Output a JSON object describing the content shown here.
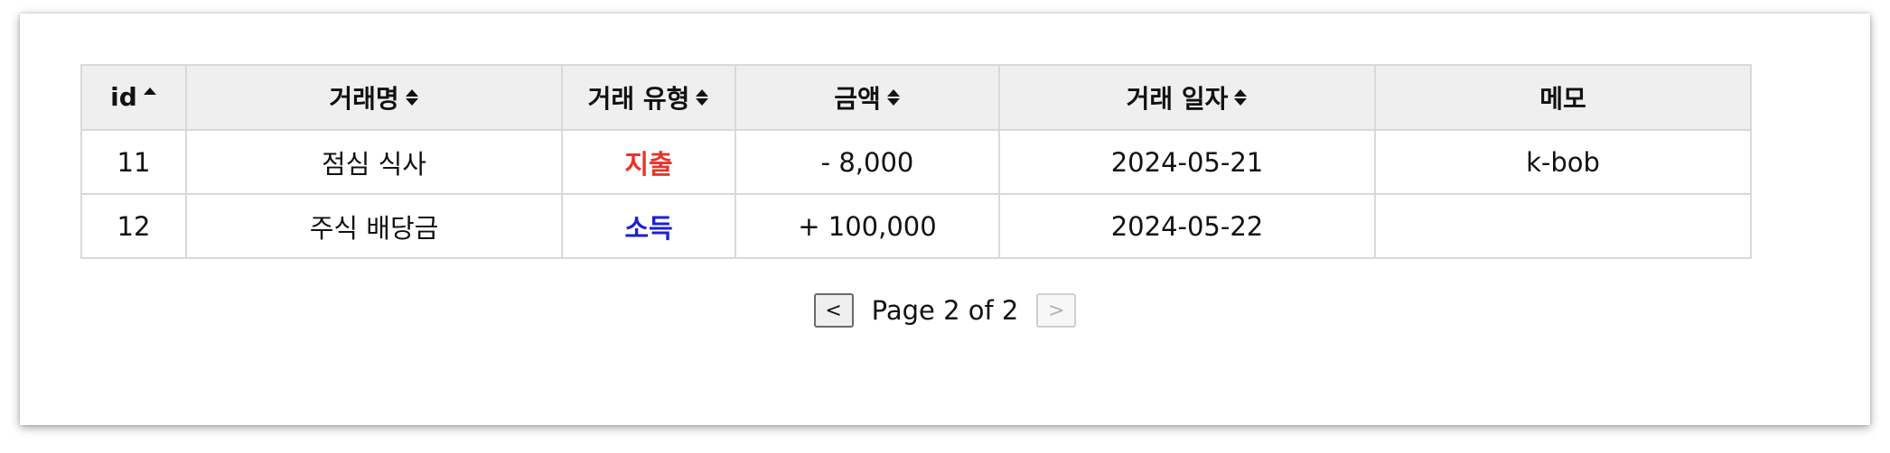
{
  "table": {
    "columns": [
      {
        "label": "id",
        "sort": "asc"
      },
      {
        "label": "거래명",
        "sort": "both"
      },
      {
        "label": "거래 유형",
        "sort": "both"
      },
      {
        "label": "금액",
        "sort": "both"
      },
      {
        "label": "거래 일자",
        "sort": "both"
      },
      {
        "label": "메모",
        "sort": "none"
      }
    ],
    "rows": [
      {
        "id": "11",
        "name": "점심 식사",
        "type": "지출",
        "type_kind": "expense",
        "amount": "- 8,000",
        "date": "2024-05-21",
        "memo": "k-bob"
      },
      {
        "id": "12",
        "name": "주식 배당금",
        "type": "소득",
        "type_kind": "income",
        "amount": "+ 100,000",
        "date": "2024-05-22",
        "memo": ""
      }
    ]
  },
  "colors": {
    "expense": "#e8342a",
    "income": "#1a20d6",
    "header_bg": "#efefef",
    "border": "#d9d9d9"
  },
  "pagination": {
    "prev_label": "<",
    "page_text": "Page 2 of 2",
    "next_label": ">",
    "next_disabled": true
  }
}
